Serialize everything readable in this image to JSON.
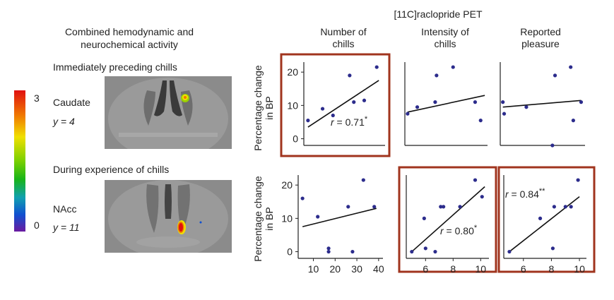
{
  "figure": {
    "pet_title": "[11C]raclopride PET",
    "columns": [
      "Number of chills",
      "Intensity of chills",
      "Reported pleasure"
    ],
    "left_title": [
      "Combined hemodynamic and",
      "neurochemical activity"
    ],
    "preceding_label": "Immediately preceding chills",
    "during_label": "During experience of chills",
    "caudate": {
      "region": "Caudate",
      "coord": "y = 4"
    },
    "nacc": {
      "region": "NAcc",
      "coord": "y = 11"
    },
    "colorbar": {
      "max": "3",
      "min": "0"
    },
    "ylabel_line1": "Percentage change",
    "ylabel_line2": "in BP",
    "highlight_color": "#a0341e",
    "point_color": "#2c2c8c"
  },
  "chart_data": [
    {
      "type": "scatter",
      "row": "top",
      "col": "Number of chills",
      "highlighted": true,
      "x": [
        5,
        12,
        17,
        25,
        27,
        32,
        38
      ],
      "y": [
        5.5,
        9,
        7,
        19,
        11,
        11.5,
        21.5
      ],
      "fit": [
        [
          5,
          3.5
        ],
        [
          39,
          17.5
        ]
      ],
      "xlim": [
        3,
        42
      ],
      "ylim": [
        -2,
        23
      ],
      "yticks": [
        0,
        10,
        20
      ],
      "xticks": [],
      "stat_r": "0.71",
      "stat_sig": "*"
    },
    {
      "type": "scatter",
      "row": "top",
      "col": "Intensity of chills",
      "highlighted": false,
      "x": [
        4.2,
        4.9,
        6.2,
        6.3,
        7.5,
        9.1,
        9.5
      ],
      "y": [
        7.5,
        9.5,
        11,
        19,
        21.5,
        11,
        5.5
      ],
      "fit": [
        [
          4.2,
          8
        ],
        [
          9.8,
          13
        ]
      ],
      "xlim": [
        4,
        10
      ],
      "ylim": [
        -2,
        23
      ],
      "yticks": [],
      "xticks": [],
      "stat_r": "",
      "stat_sig": ""
    },
    {
      "type": "scatter",
      "row": "top",
      "col": "Reported pleasure",
      "highlighted": false,
      "x": [
        4.2,
        4.3,
        6.0,
        8.0,
        8.2,
        9.4,
        9.6,
        10.2
      ],
      "y": [
        11,
        7.5,
        9.5,
        -2,
        19,
        21.5,
        5.5,
        11
      ],
      "fit": [
        [
          4.2,
          9.5
        ],
        [
          10.2,
          11.5
        ]
      ],
      "xlim": [
        4,
        10.5
      ],
      "ylim": [
        -2,
        23
      ],
      "yticks": [],
      "xticks": [],
      "stat_r": "",
      "stat_sig": ""
    },
    {
      "type": "scatter",
      "row": "bottom",
      "col": "Number of chills",
      "highlighted": false,
      "x": [
        5,
        12,
        17,
        17,
        26,
        28,
        33,
        38
      ],
      "y": [
        16,
        10.5,
        1,
        0,
        13.5,
        0,
        21.5,
        13.5
      ],
      "fit": [
        [
          5,
          7.5
        ],
        [
          39,
          13
        ]
      ],
      "xlim": [
        3,
        42
      ],
      "ylim": [
        -2,
        23
      ],
      "yticks": [
        0,
        10,
        20
      ],
      "xticks": [
        10,
        20,
        30,
        40
      ],
      "stat_r": "",
      "stat_sig": ""
    },
    {
      "type": "scatter",
      "row": "bottom",
      "col": "Intensity of chills",
      "highlighted": true,
      "x": [
        5,
        5.9,
        6.0,
        6.7,
        7.1,
        7.3,
        8.5,
        9.6,
        10.1
      ],
      "y": [
        0,
        10,
        1,
        0,
        13.5,
        13.5,
        13.5,
        21.5,
        16.5
      ],
      "fit": [
        [
          5,
          0
        ],
        [
          10.3,
          19.5
        ]
      ],
      "xlim": [
        4.6,
        10.6
      ],
      "ylim": [
        -2,
        23
      ],
      "yticks": [],
      "xticks": [
        6,
        8,
        10
      ],
      "stat_r": "0.80",
      "stat_sig": "*"
    },
    {
      "type": "scatter",
      "row": "bottom",
      "col": "Reported pleasure",
      "highlighted": true,
      "x": [
        5,
        7.2,
        8.1,
        8.2,
        9.0,
        9.4,
        9.9
      ],
      "y": [
        0,
        10,
        1,
        13.5,
        13.5,
        13.5,
        21.5
      ],
      "fit": [
        [
          5,
          0
        ],
        [
          10,
          16.5
        ]
      ],
      "xlim": [
        4.6,
        10.5
      ],
      "ylim": [
        -2,
        23
      ],
      "yticks": [],
      "xticks": [
        6,
        8,
        10
      ],
      "stat_r": "0.84",
      "stat_sig": "**"
    }
  ]
}
